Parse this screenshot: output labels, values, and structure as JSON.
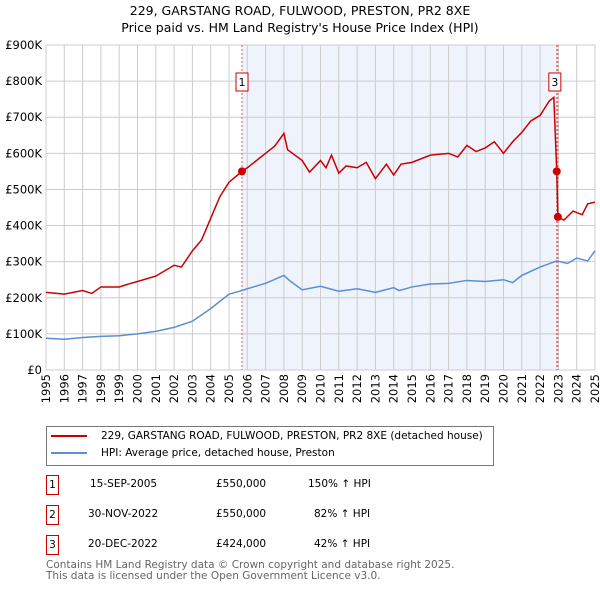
{
  "title": "229, GARSTANG ROAD, FULWOOD, PRESTON, PR2 8XE",
  "subtitle": "Price paid vs. HM Land Registry's House Price Index (HPI)",
  "legend": {
    "property": "229, GARSTANG ROAD, FULWOOD, PRESTON, PR2 8XE (detached house)",
    "hpi": "HPI: Average price, detached house, Preston"
  },
  "sales": [
    {
      "num": "1",
      "date": "15-SEP-2005",
      "price": "£550,000",
      "hpi": "150% ↑ HPI"
    },
    {
      "num": "2",
      "date": "30-NOV-2022",
      "price": "£550,000",
      "hpi": "82% ↑ HPI"
    },
    {
      "num": "3",
      "date": "20-DEC-2022",
      "price": "£424,000",
      "hpi": "42% ↑ HPI"
    }
  ],
  "footer": {
    "line1": "Contains HM Land Registry data © Crown copyright and database right 2025.",
    "line2": "This data is licensed under the Open Government Licence v3.0."
  },
  "chart_data": {
    "type": "line",
    "ylim": [
      0,
      900000
    ],
    "xlim": [
      1995,
      2025
    ],
    "yticks": [
      {
        "v": 0,
        "label": "£0"
      },
      {
        "v": 100000,
        "label": "£100K"
      },
      {
        "v": 200000,
        "label": "£200K"
      },
      {
        "v": 300000,
        "label": "£300K"
      },
      {
        "v": 400000,
        "label": "£400K"
      },
      {
        "v": 500000,
        "label": "£500K"
      },
      {
        "v": 600000,
        "label": "£600K"
      },
      {
        "v": 700000,
        "label": "£700K"
      },
      {
        "v": 800000,
        "label": "£800K"
      },
      {
        "v": 900000,
        "label": "£900K"
      }
    ],
    "xticks": [
      "1995",
      "1996",
      "1997",
      "1998",
      "1999",
      "2000",
      "2001",
      "2002",
      "2003",
      "2004",
      "2005",
      "2006",
      "2007",
      "2008",
      "2009",
      "2010",
      "2011",
      "2012",
      "2013",
      "2014",
      "2015",
      "2016",
      "2017",
      "2018",
      "2019",
      "2020",
      "2021",
      "2022",
      "2023",
      "2024",
      "2025"
    ],
    "colors": {
      "property": "#cc0000",
      "hpi": "#5b8ed6",
      "shade": "#eef3fc"
    },
    "shaded": [
      2005.71,
      2022.97
    ],
    "events": [
      {
        "num": "1",
        "x": 2005.71,
        "y": 550000
      },
      {
        "num": "2",
        "x": 2022.91,
        "y": 550000
      },
      {
        "num": "3",
        "x": 2022.97,
        "y": 424000
      }
    ],
    "series": [
      {
        "name": "property",
        "points": [
          [
            1995,
            215000
          ],
          [
            1996,
            210000
          ],
          [
            1997,
            220000
          ],
          [
            1997.5,
            212000
          ],
          [
            1998,
            230000
          ],
          [
            1999,
            230000
          ],
          [
            1999.5,
            238000
          ],
          [
            2000,
            245000
          ],
          [
            2001,
            260000
          ],
          [
            2002,
            290000
          ],
          [
            2002.4,
            285000
          ],
          [
            2003,
            330000
          ],
          [
            2003.5,
            360000
          ],
          [
            2004,
            420000
          ],
          [
            2004.5,
            480000
          ],
          [
            2005,
            520000
          ],
          [
            2005.71,
            550000
          ],
          [
            2006,
            560000
          ],
          [
            2007,
            600000
          ],
          [
            2007.5,
            620000
          ],
          [
            2008,
            655000
          ],
          [
            2008.2,
            610000
          ],
          [
            2009,
            580000
          ],
          [
            2009.4,
            548000
          ],
          [
            2010,
            580000
          ],
          [
            2010.3,
            560000
          ],
          [
            2010.6,
            595000
          ],
          [
            2011,
            545000
          ],
          [
            2011.4,
            565000
          ],
          [
            2012,
            560000
          ],
          [
            2012.5,
            575000
          ],
          [
            2013,
            530000
          ],
          [
            2013.6,
            570000
          ],
          [
            2014,
            540000
          ],
          [
            2014.4,
            570000
          ],
          [
            2015,
            575000
          ],
          [
            2016,
            595000
          ],
          [
            2017,
            600000
          ],
          [
            2017.5,
            590000
          ],
          [
            2018,
            622000
          ],
          [
            2018.5,
            605000
          ],
          [
            2019,
            615000
          ],
          [
            2019.5,
            632000
          ],
          [
            2020,
            600000
          ],
          [
            2020.5,
            632000
          ],
          [
            2021,
            658000
          ],
          [
            2021.5,
            690000
          ],
          [
            2022,
            705000
          ],
          [
            2022.5,
            745000
          ],
          [
            2022.75,
            755000
          ],
          [
            2022.91,
            550000
          ],
          [
            2022.97,
            424000
          ],
          [
            2023.3,
            415000
          ],
          [
            2023.8,
            440000
          ],
          [
            2024.3,
            430000
          ],
          [
            2024.6,
            460000
          ],
          [
            2025,
            465000
          ]
        ]
      },
      {
        "name": "hpi",
        "points": [
          [
            1995,
            88000
          ],
          [
            1996,
            85000
          ],
          [
            1997,
            90000
          ],
          [
            1998,
            93000
          ],
          [
            1999,
            95000
          ],
          [
            2000,
            100000
          ],
          [
            2001,
            107000
          ],
          [
            2002,
            118000
          ],
          [
            2003,
            135000
          ],
          [
            2004,
            170000
          ],
          [
            2005,
            210000
          ],
          [
            2005.71,
            220000
          ],
          [
            2006,
            225000
          ],
          [
            2007,
            240000
          ],
          [
            2008,
            262000
          ],
          [
            2008.3,
            248000
          ],
          [
            2009,
            222000
          ],
          [
            2010,
            232000
          ],
          [
            2010.5,
            225000
          ],
          [
            2011,
            218000
          ],
          [
            2012,
            225000
          ],
          [
            2013,
            215000
          ],
          [
            2014,
            228000
          ],
          [
            2014.3,
            220000
          ],
          [
            2015,
            230000
          ],
          [
            2016,
            238000
          ],
          [
            2017,
            240000
          ],
          [
            2018,
            248000
          ],
          [
            2019,
            245000
          ],
          [
            2020,
            250000
          ],
          [
            2020.5,
            242000
          ],
          [
            2021,
            262000
          ],
          [
            2022,
            285000
          ],
          [
            2022.91,
            302000
          ],
          [
            2023.5,
            295000
          ],
          [
            2024,
            310000
          ],
          [
            2024.6,
            302000
          ],
          [
            2025,
            330000
          ]
        ]
      }
    ]
  }
}
